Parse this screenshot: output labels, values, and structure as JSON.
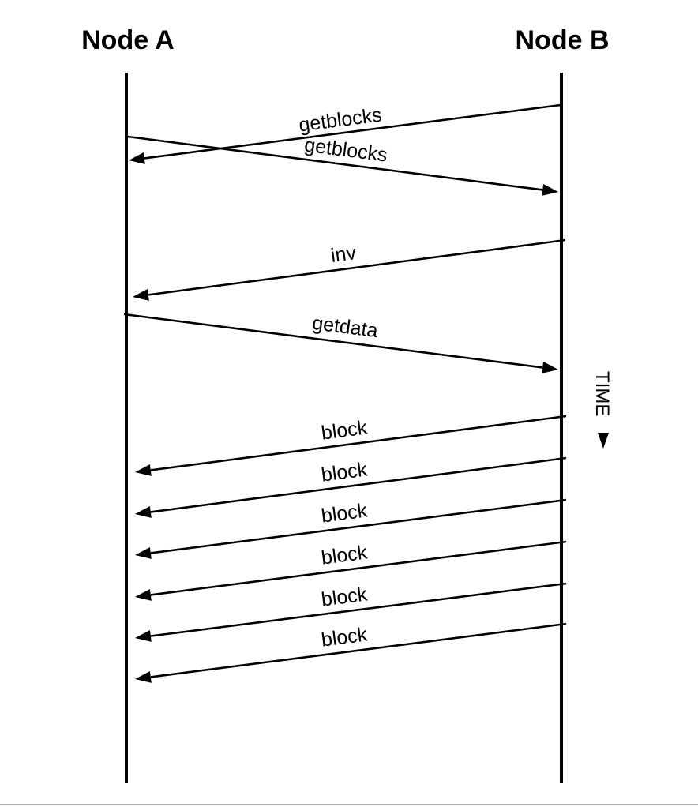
{
  "nodes": {
    "a": "Node A",
    "b": "Node B"
  },
  "time_label": "TIME",
  "messages": [
    {
      "label": "getblocks",
      "from": "Node B",
      "to": "Node A"
    },
    {
      "label": "getblocks",
      "from": "Node A",
      "to": "Node B"
    },
    {
      "label": "inv",
      "from": "Node B",
      "to": "Node A"
    },
    {
      "label": "getdata",
      "from": "Node A",
      "to": "Node B"
    },
    {
      "label": "block",
      "from": "Node B",
      "to": "Node A"
    },
    {
      "label": "block",
      "from": "Node B",
      "to": "Node A"
    },
    {
      "label": "block",
      "from": "Node B",
      "to": "Node A"
    },
    {
      "label": "block",
      "from": "Node B",
      "to": "Node A"
    },
    {
      "label": "block",
      "from": "Node B",
      "to": "Node A"
    },
    {
      "label": "block",
      "from": "Node B",
      "to": "Node A"
    }
  ],
  "colors": {
    "ink": "#000000",
    "background": "#ffffff",
    "rule": "#666666"
  }
}
